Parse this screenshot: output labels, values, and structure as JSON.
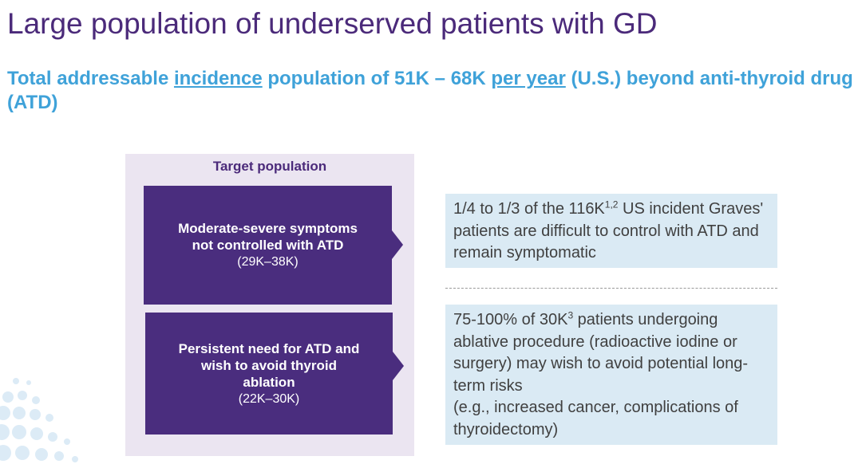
{
  "title": "Large population of underserved patients with GD",
  "subtitle": {
    "p1": "Total addressable ",
    "u1": "incidence",
    "p2": " population of 51K – 68K ",
    "u2": "per year",
    "p3": " (U.S.) beyond anti-thyroid drug (ATD)"
  },
  "target_panel": {
    "title": "Target population",
    "box1": {
      "line1": "Moderate-severe symptoms",
      "line2": "not controlled with ATD",
      "range": "(29K–38K)"
    },
    "box2": {
      "line1": "Persistent need for ATD and",
      "line2": "wish to avoid thyroid",
      "line3": "ablation",
      "range": "(22K–30K)"
    }
  },
  "info1": {
    "pre": "1/4 to 1/3 of the 116K",
    "sup": "1,2",
    "post": " US incident Graves' patients are difficult to control with ATD and remain symptomatic"
  },
  "info2": {
    "pre": "75-100% of 30K",
    "sup": "3",
    "post": " patients undergoing ablative procedure (radioactive iodine or surgery) may wish to avoid potential long-term risks",
    "line2": "(e.g., increased cancer, complications of thyroidectomy)"
  },
  "colors": {
    "title": "#4b2a7a",
    "subtitle": "#3fa2d9",
    "box": "#4a2d7e",
    "panel": "#ebe5f1",
    "info": "#daeaf4"
  }
}
